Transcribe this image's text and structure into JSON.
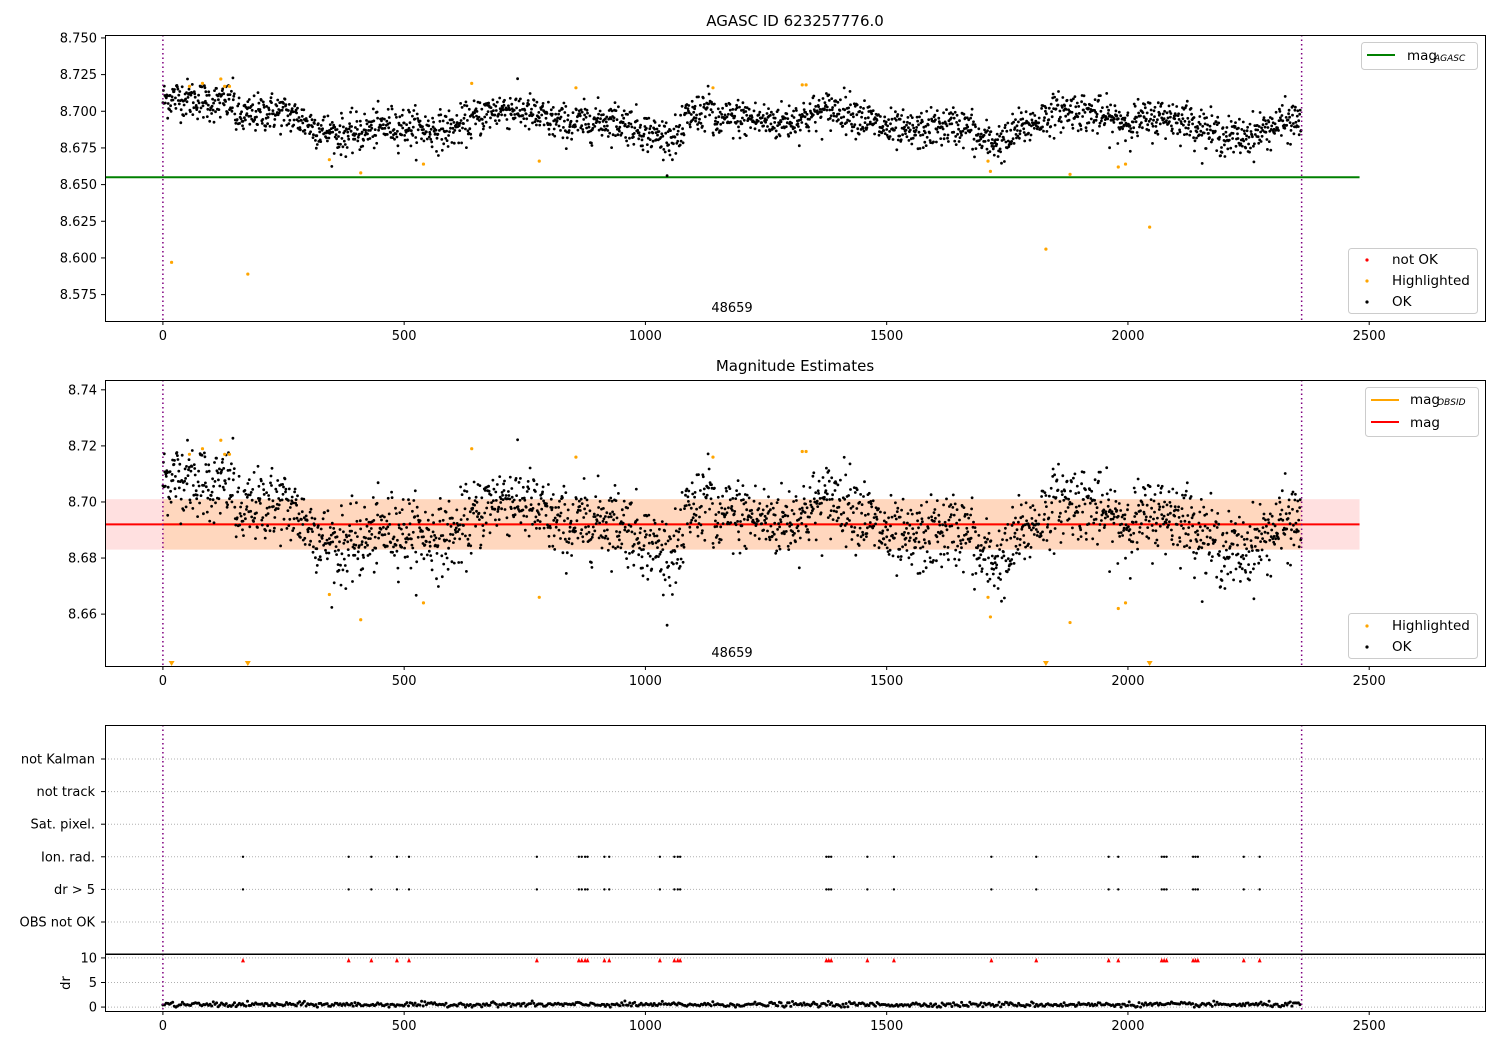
{
  "figure": {
    "title_top": "AGASC ID 623257776.0",
    "title_mid": "Magnitude Estimates",
    "obsid_label": "48659"
  },
  "chart_data": [
    {
      "type": "scatter",
      "title": "AGASC ID 623257776.0",
      "xlim": [
        -120,
        2740
      ],
      "ylim": [
        8.557,
        8.752
      ],
      "xticks": [
        0,
        500,
        1000,
        1500,
        2000,
        2500
      ],
      "yticks": [
        8.575,
        8.6,
        8.625,
        8.65,
        8.675,
        8.7,
        8.725,
        8.75
      ],
      "ytick_labels": [
        "8.575",
        "8.600",
        "8.625",
        "8.650",
        "8.675",
        "8.700",
        "8.725",
        "8.750"
      ],
      "mag_agasc": 8.655,
      "mag_agasc_x": [
        -120,
        2480
      ],
      "obs_boundaries": [
        0,
        2360
      ],
      "annotation": {
        "x": 1180,
        "y": 8.566,
        "text": "48659"
      },
      "legend_lines": [
        {
          "name": "mag",
          "sub": "AGASC",
          "color": "#008000"
        }
      ],
      "legend_points": [
        {
          "name": "not OK",
          "color": "#ff0000"
        },
        {
          "name": "Highlighted",
          "color": "#ffa500"
        },
        {
          "name": "OK",
          "color": "#000000"
        }
      ],
      "ok_points": {
        "n": 2360,
        "x_range": [
          0,
          2360
        ],
        "approx_center": 8.692,
        "approx_spread": 0.012
      },
      "highlighted": [
        {
          "x": 18,
          "y": 8.597
        },
        {
          "x": 55,
          "y": 8.717
        },
        {
          "x": 82,
          "y": 8.719
        },
        {
          "x": 120,
          "y": 8.722
        },
        {
          "x": 128,
          "y": 8.717
        },
        {
          "x": 138,
          "y": 8.717
        },
        {
          "x": 176,
          "y": 8.589
        },
        {
          "x": 345,
          "y": 8.667
        },
        {
          "x": 410,
          "y": 8.658
        },
        {
          "x": 540,
          "y": 8.664
        },
        {
          "x": 640,
          "y": 8.719
        },
        {
          "x": 780,
          "y": 8.666
        },
        {
          "x": 856,
          "y": 8.716
        },
        {
          "x": 1140,
          "y": 8.716
        },
        {
          "x": 1325,
          "y": 8.718
        },
        {
          "x": 1333,
          "y": 8.718
        },
        {
          "x": 1710,
          "y": 8.666
        },
        {
          "x": 1715,
          "y": 8.659
        },
        {
          "x": 1830,
          "y": 8.606
        },
        {
          "x": 1880,
          "y": 8.657
        },
        {
          "x": 1980,
          "y": 8.662
        },
        {
          "x": 1995,
          "y": 8.664
        },
        {
          "x": 2045,
          "y": 8.621
        }
      ]
    },
    {
      "type": "scatter",
      "title": "Magnitude Estimates",
      "xlim": [
        -120,
        2740
      ],
      "ylim": [
        8.6415,
        8.7435
      ],
      "xticks": [
        0,
        500,
        1000,
        1500,
        2000,
        2500
      ],
      "yticks": [
        8.66,
        8.68,
        8.7,
        8.72,
        8.74
      ],
      "ytick_labels": [
        "8.66",
        "8.68",
        "8.70",
        "8.72",
        "8.74"
      ],
      "mag": 8.692,
      "mag_band": [
        8.683,
        8.701
      ],
      "mag_obsid": 8.692,
      "mag_obsid_band": [
        8.683,
        8.701
      ],
      "mag_obsid_x": [
        0,
        2360
      ],
      "mag_x": [
        -120,
        2480
      ],
      "obs_boundaries": [
        0,
        2360
      ],
      "annotation": {
        "x": 1180,
        "y": 8.6445,
        "text": "48659"
      },
      "legend_lines": [
        {
          "name": "mag",
          "sub": "OBSID",
          "color": "#ffa500"
        },
        {
          "name": "mag",
          "sub": "",
          "color": "#ff0000"
        }
      ],
      "legend_points": [
        {
          "name": "Highlighted",
          "color": "#ffa500"
        },
        {
          "name": "OK",
          "color": "#000000"
        }
      ],
      "off_scale_markers_x": [
        18,
        176,
        1830,
        2045
      ],
      "highlighted": [
        {
          "x": 55,
          "y": 8.717
        },
        {
          "x": 82,
          "y": 8.719
        },
        {
          "x": 120,
          "y": 8.722
        },
        {
          "x": 128,
          "y": 8.717
        },
        {
          "x": 138,
          "y": 8.717
        },
        {
          "x": 345,
          "y": 8.667
        },
        {
          "x": 410,
          "y": 8.658
        },
        {
          "x": 540,
          "y": 8.664
        },
        {
          "x": 640,
          "y": 8.719
        },
        {
          "x": 780,
          "y": 8.666
        },
        {
          "x": 856,
          "y": 8.716
        },
        {
          "x": 1140,
          "y": 8.716
        },
        {
          "x": 1325,
          "y": 8.718
        },
        {
          "x": 1333,
          "y": 8.718
        },
        {
          "x": 1710,
          "y": 8.666
        },
        {
          "x": 1715,
          "y": 8.659
        },
        {
          "x": 1880,
          "y": 8.657
        },
        {
          "x": 1980,
          "y": 8.662
        },
        {
          "x": 1995,
          "y": 8.664
        }
      ]
    },
    {
      "type": "scatter",
      "title": "",
      "xlim": [
        -120,
        2740
      ],
      "xticks": [
        0,
        500,
        1000,
        1500,
        2000,
        2500
      ],
      "flag_rows": [
        "not Kalman",
        "not track",
        "Sat. pixel.",
        "Ion. rad.",
        "dr > 5",
        "OBS not OK"
      ],
      "flag_x": [
        166,
        385,
        432,
        485,
        510,
        775,
        862,
        868,
        875,
        880,
        915,
        925,
        1030,
        1060,
        1067,
        1072,
        1375,
        1380,
        1385,
        1460,
        1515,
        1717,
        1810,
        1960,
        1980,
        2070,
        2075,
        2080,
        2135,
        2140,
        2145,
        2240,
        2273
      ],
      "dr_ylabel": "dr",
      "dr_ylim": [
        -0.8,
        10.8
      ],
      "dr_yticks": [
        0,
        5,
        10
      ],
      "dr_flag_value": 9.5,
      "dr_baseline": 0.5,
      "obs_boundaries": [
        0,
        2360
      ]
    }
  ]
}
